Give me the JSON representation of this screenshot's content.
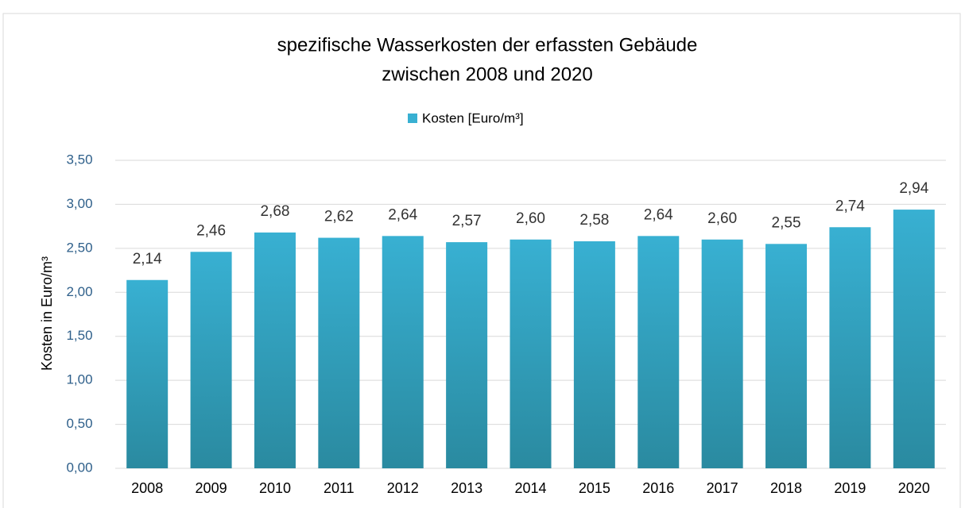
{
  "chart_data": {
    "type": "bar",
    "title": [
      "spezifische Wasserkosten der erfassten Gebäude",
      "zwischen 2008 und 2020"
    ],
    "y_label": "Kosten in Euro/m³",
    "categories": [
      "2008",
      "2009",
      "2010",
      "2011",
      "2012",
      "2013",
      "2014",
      "2015",
      "2016",
      "2017",
      "2018",
      "2019",
      "2020"
    ],
    "series": [
      {
        "name": "Kosten [Euro/m³]",
        "color": "#38b0d2",
        "values": [
          2.14,
          2.46,
          2.68,
          2.62,
          2.64,
          2.57,
          2.6,
          2.58,
          2.64,
          2.6,
          2.55,
          2.74,
          2.94
        ],
        "value_labels": [
          "2,14",
          "2,46",
          "2,68",
          "2,62",
          "2,64",
          "2,57",
          "2,60",
          "2,58",
          "2,64",
          "2,60",
          "2,55",
          "2,74",
          "2,94"
        ]
      }
    ],
    "ylim": [
      0,
      3.5
    ],
    "yticks": [
      {
        "value": 0,
        "label": "0,00"
      },
      {
        "value": 0.5,
        "label": "0,50"
      },
      {
        "value": 1,
        "label": "1,00"
      },
      {
        "value": 1.5,
        "label": "1,50"
      },
      {
        "value": 2,
        "label": "2,00"
      },
      {
        "value": 2.5,
        "label": "2,50"
      },
      {
        "value": 3,
        "label": "3,00"
      },
      {
        "value": 3.5,
        "label": "3,50"
      }
    ],
    "grid": true,
    "legend": "top"
  }
}
